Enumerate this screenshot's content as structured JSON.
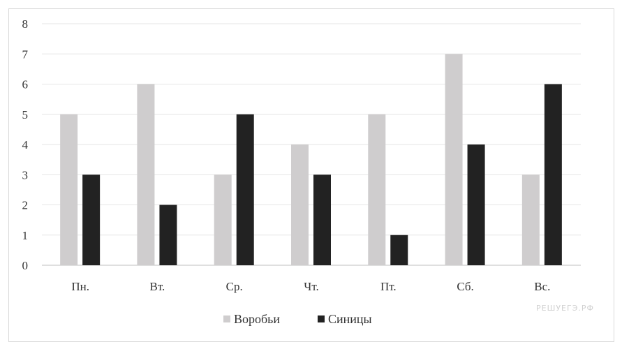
{
  "chart_data": {
    "type": "bar",
    "categories": [
      "Пн.",
      "Вт.",
      "Ср.",
      "Чт.",
      "Пт.",
      "Сб.",
      "Вс."
    ],
    "series": [
      {
        "name": "Воробьи",
        "values": [
          5,
          6,
          3,
          4,
          5,
          7,
          3
        ],
        "color": "#cfcdce"
      },
      {
        "name": "Синицы",
        "values": [
          3,
          2,
          5,
          3,
          1,
          4,
          6
        ],
        "color": "#222222"
      }
    ],
    "ylim": [
      0,
      8
    ],
    "yticks": [
      0,
      1,
      2,
      3,
      4,
      5,
      6,
      7,
      8
    ],
    "grid": true,
    "legend": "bottom",
    "title": "",
    "xlabel": "",
    "ylabel": ""
  },
  "watermark": "РЕШУЕГЭ.РФ"
}
